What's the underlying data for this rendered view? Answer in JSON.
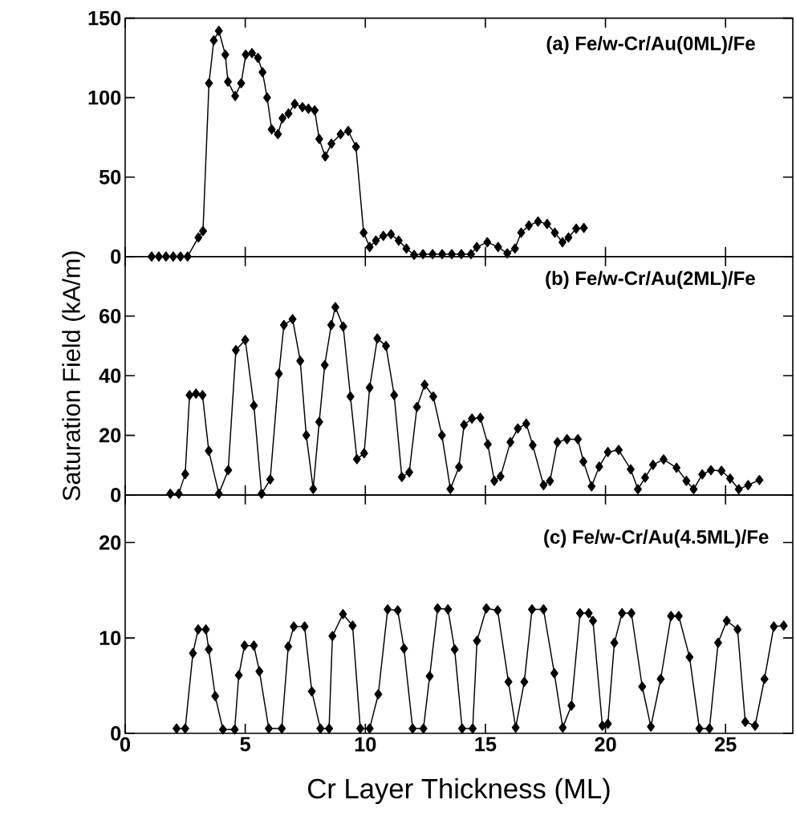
{
  "chart_data": [
    {
      "type": "line",
      "title": "(a) Fe/w-Cr/Au(0ML)/Fe",
      "color": "#000000",
      "marker": "diamond",
      "line_style": "solid",
      "tick_labels": "y",
      "xlim": [
        0,
        27.8
      ],
      "ylim": [
        0,
        150
      ],
      "xticks": [
        0,
        5,
        10,
        15,
        20,
        25
      ],
      "yticks": [
        0,
        50,
        100,
        150
      ],
      "x": [
        1.1,
        1.4,
        1.7,
        2.0,
        2.3,
        2.6,
        3.05,
        3.24,
        3.49,
        3.69,
        3.9,
        4.17,
        4.28,
        4.58,
        4.83,
        5.02,
        5.28,
        5.53,
        5.72,
        5.91,
        6.1,
        6.36,
        6.55,
        6.8,
        7.06,
        7.38,
        7.63,
        7.89,
        8.08,
        8.33,
        8.59,
        8.97,
        9.29,
        9.61,
        9.93,
        10.18,
        10.44,
        10.75,
        11.07,
        11.39,
        11.71,
        12.03,
        12.4,
        12.8,
        13.2,
        13.6,
        14.0,
        14.4,
        14.64,
        15.08,
        15.53,
        15.91,
        16.23,
        16.49,
        16.81,
        17.19,
        17.57,
        17.89,
        18.21,
        18.46,
        18.78,
        19.1
      ],
      "values": [
        0,
        0,
        0,
        0,
        0,
        0,
        12,
        16,
        109,
        136,
        142,
        127,
        110,
        101,
        109,
        127,
        128,
        125,
        116,
        100,
        80,
        77,
        87,
        90,
        96,
        94,
        93,
        92,
        74,
        63,
        71,
        77,
        79,
        69,
        15,
        6,
        10,
        13,
        14,
        10,
        5,
        1,
        1.5,
        1.5,
        1.5,
        1.5,
        1.5,
        1.5,
        6,
        9,
        6,
        2,
        5,
        15,
        19.5,
        22,
        20.5,
        15,
        9,
        12,
        17.5,
        18
      ]
    },
    {
      "type": "line",
      "title": "(b) Fe/w-Cr/Au(2ML)/Fe",
      "ylabel": "Saturation Field (kA/m)",
      "color": "#000000",
      "marker": "diamond",
      "line_style": "solid",
      "tick_labels": "y",
      "xlim": [
        0,
        27.8
      ],
      "ylim": [
        0,
        80
      ],
      "xticks": [
        0,
        5,
        10,
        15,
        20,
        25
      ],
      "yticks": [
        0,
        20,
        40,
        60
      ],
      "x": [
        1.88,
        2.23,
        2.5,
        2.68,
        2.95,
        3.22,
        3.48,
        3.9,
        4.29,
        4.61,
        5.0,
        5.36,
        5.68,
        6.04,
        6.4,
        6.61,
        6.97,
        7.29,
        7.54,
        7.83,
        8.08,
        8.31,
        8.58,
        8.75,
        9.08,
        9.38,
        9.65,
        9.95,
        10.18,
        10.5,
        10.86,
        11.2,
        11.52,
        11.83,
        12.15,
        12.47,
        12.83,
        13.19,
        13.54,
        13.9,
        14.11,
        14.44,
        14.79,
        15.1,
        15.37,
        15.63,
        16.04,
        16.35,
        16.7,
        16.97,
        17.42,
        17.69,
        18.0,
        18.4,
        18.85,
        19.08,
        19.42,
        19.74,
        20.1,
        20.55,
        21.05,
        21.35,
        21.65,
        21.98,
        22.42,
        22.96,
        23.37,
        23.67,
        24.03,
        24.39,
        24.83,
        25.19,
        25.55,
        25.94,
        26.41
      ],
      "values": [
        0.4,
        0.4,
        7,
        33.5,
        34,
        33.5,
        14.8,
        0.4,
        8.3,
        48.6,
        52,
        30,
        0.4,
        5.2,
        40.7,
        57,
        59,
        45,
        20,
        2,
        24.5,
        43.6,
        57,
        63,
        56.5,
        33,
        12,
        14,
        36,
        52.5,
        50,
        33.5,
        6,
        7.6,
        29.5,
        37,
        33,
        20,
        2,
        9.4,
        23.5,
        25.6,
        25.9,
        17,
        4.7,
        6.2,
        17.7,
        22.3,
        23.9,
        16.7,
        3.3,
        4.7,
        17.7,
        18.7,
        18.7,
        11.2,
        2.9,
        9.5,
        14.4,
        15.1,
        8.6,
        1.9,
        5.8,
        10.1,
        11.9,
        9.1,
        4.7,
        1.9,
        6.9,
        8.3,
        8.1,
        5.5,
        1.9,
        3.3,
        5.0
      ]
    },
    {
      "type": "line",
      "title": "(c) Fe/w-Cr/Au(4.5ML)/Fe",
      "xlabel": "Cr Layer Thickness (ML)",
      "color": "#000000",
      "marker": "diamond",
      "line_style": "solid",
      "xlim": [
        0,
        27.8
      ],
      "ylim": [
        0,
        25
      ],
      "xticks": [
        0,
        5,
        10,
        15,
        20,
        25
      ],
      "yticks": [
        0,
        10,
        20
      ],
      "x": [
        2.14,
        2.5,
        2.82,
        3.04,
        3.36,
        3.48,
        3.75,
        4.07,
        4.56,
        4.73,
        4.97,
        5.36,
        5.59,
        5.98,
        6.52,
        6.79,
        7.02,
        7.47,
        7.77,
        8.13,
        8.49,
        8.63,
        9.07,
        9.47,
        9.79,
        10.18,
        10.54,
        10.93,
        11.35,
        11.61,
        11.97,
        12.42,
        12.68,
        13.01,
        13.44,
        13.72,
        14.03,
        14.47,
        14.65,
        15.04,
        15.51,
        15.96,
        16.26,
        16.62,
        16.94,
        17.42,
        17.87,
        18.22,
        18.58,
        18.94,
        19.3,
        19.48,
        19.87,
        20.1,
        20.37,
        20.69,
        21.08,
        21.53,
        21.89,
        22.3,
        22.73,
        23.05,
        23.5,
        23.91,
        24.33,
        24.69,
        25.05,
        25.5,
        25.82,
        26.23,
        26.62,
        27.01,
        27.42
      ],
      "values": [
        0.5,
        0.5,
        8.4,
        10.9,
        10.9,
        8.8,
        3.9,
        0.4,
        0.4,
        6.1,
        9.2,
        9.2,
        6.5,
        0.5,
        0.5,
        9.1,
        11.2,
        11.2,
        4.4,
        0.5,
        0.5,
        10.2,
        12.5,
        11.3,
        0.5,
        0.5,
        4.1,
        13.0,
        12.9,
        8.9,
        0.5,
        0.5,
        6.0,
        13.1,
        13.0,
        8.8,
        0.5,
        0.5,
        9.7,
        13.1,
        12.9,
        5.4,
        0.6,
        5.4,
        13.0,
        13.0,
        6.3,
        0.6,
        2.9,
        12.6,
        12.6,
        11.8,
        0.8,
        1.0,
        9.5,
        12.6,
        12.6,
        4.9,
        0.7,
        5.7,
        12.3,
        12.3,
        8.0,
        0.5,
        0.5,
        9.5,
        11.8,
        10.9,
        1.2,
        0.8,
        5.7,
        11.2,
        11.3
      ]
    }
  ]
}
